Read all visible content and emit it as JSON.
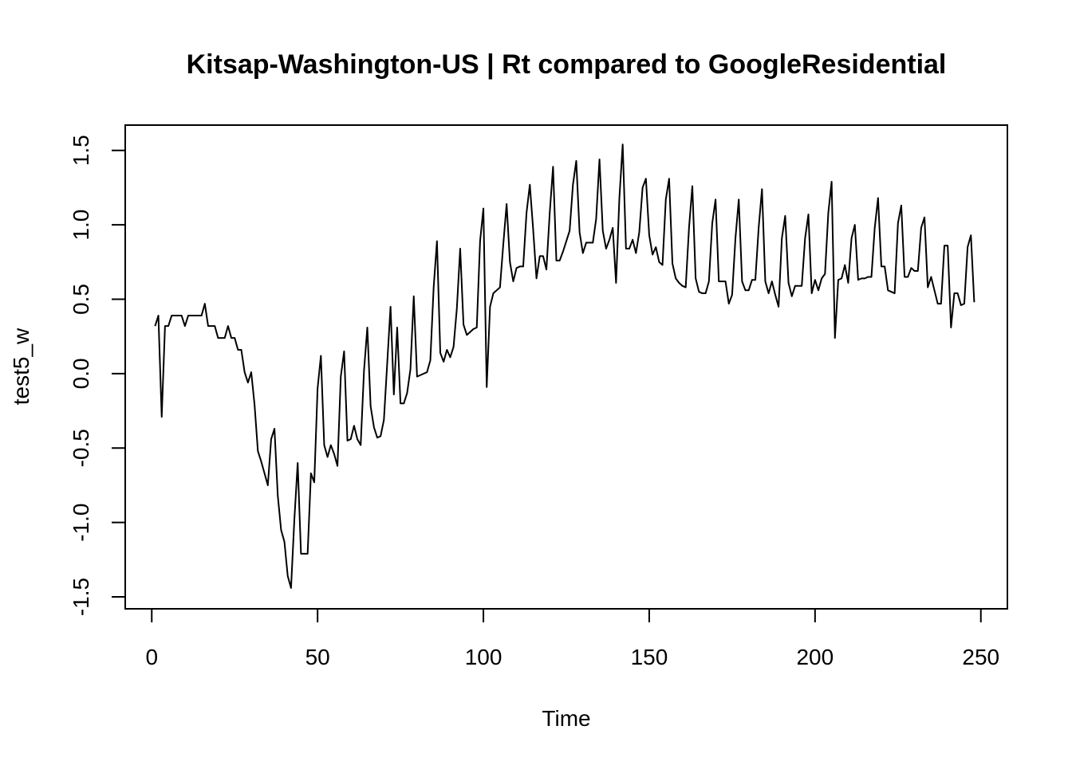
{
  "chart_data": {
    "type": "line",
    "title": "Kitsap-Washington-US | Rt compared to GoogleResidential",
    "xlabel": "Time",
    "ylabel": "test5_w",
    "xlim": [
      -8,
      258
    ],
    "ylim": [
      -1.58,
      1.67
    ],
    "x_ticks": [
      0,
      50,
      100,
      150,
      200,
      250
    ],
    "y_ticks": [
      -1.5,
      -1.0,
      -0.5,
      0.0,
      0.5,
      1.0,
      1.5
    ],
    "x_tick_labels": [
      "0",
      "50",
      "100",
      "150",
      "200",
      "250"
    ],
    "y_tick_labels": [
      "-1.5",
      "-1.0",
      "-0.5",
      "0.0",
      "0.5",
      "1.0",
      "1.5"
    ],
    "grid": false,
    "legend": "none",
    "line_color": "#000000",
    "x_start": 1,
    "values": [
      0.32,
      0.39,
      -0.29,
      0.32,
      0.32,
      0.39,
      0.39,
      0.39,
      0.39,
      0.32,
      0.39,
      0.39,
      0.39,
      0.39,
      0.39,
      0.47,
      0.32,
      0.32,
      0.32,
      0.24,
      0.24,
      0.24,
      0.32,
      0.24,
      0.24,
      0.16,
      0.16,
      0.01,
      -0.06,
      0.01,
      -0.21,
      -0.52,
      -0.59,
      -0.67,
      -0.75,
      -0.44,
      -0.37,
      -0.82,
      -1.05,
      -1.13,
      -1.36,
      -1.44,
      -0.98,
      -0.6,
      -1.21,
      -1.21,
      -1.21,
      -0.67,
      -0.73,
      -0.1,
      0.12,
      -0.48,
      -0.56,
      -0.48,
      -0.54,
      -0.62,
      -0.02,
      0.15,
      -0.45,
      -0.44,
      -0.35,
      -0.44,
      -0.48,
      0.02,
      0.31,
      -0.22,
      -0.36,
      -0.43,
      -0.42,
      -0.31,
      0.07,
      0.45,
      -0.14,
      0.31,
      -0.2,
      -0.2,
      -0.13,
      0.03,
      0.52,
      -0.02,
      -0.01,
      0.0,
      0.01,
      0.09,
      0.58,
      0.89,
      0.14,
      0.08,
      0.16,
      0.11,
      0.18,
      0.44,
      0.84,
      0.33,
      0.26,
      0.28,
      0.3,
      0.31,
      0.89,
      1.11,
      -0.09,
      0.45,
      0.54,
      0.56,
      0.58,
      0.87,
      1.14,
      0.75,
      0.62,
      0.71,
      0.72,
      0.72,
      1.08,
      1.27,
      0.97,
      0.64,
      0.79,
      0.79,
      0.7,
      1.08,
      1.39,
      0.76,
      0.76,
      0.82,
      0.89,
      0.96,
      1.27,
      1.43,
      0.95,
      0.81,
      0.88,
      0.88,
      0.88,
      1.04,
      1.44,
      0.96,
      0.84,
      0.9,
      0.98,
      0.61,
      1.18,
      1.54,
      0.84,
      0.84,
      0.9,
      0.81,
      0.95,
      1.25,
      1.31,
      0.93,
      0.8,
      0.85,
      0.75,
      0.73,
      1.17,
      1.31,
      0.74,
      0.64,
      0.61,
      0.59,
      0.58,
      0.98,
      1.26,
      0.64,
      0.55,
      0.54,
      0.54,
      0.62,
      1.01,
      1.17,
      0.62,
      0.62,
      0.62,
      0.47,
      0.53,
      0.91,
      1.17,
      0.62,
      0.56,
      0.56,
      0.63,
      0.63,
      0.98,
      1.24,
      0.62,
      0.54,
      0.62,
      0.53,
      0.45,
      0.91,
      1.06,
      0.61,
      0.52,
      0.59,
      0.59,
      0.59,
      0.91,
      1.07,
      0.54,
      0.63,
      0.56,
      0.64,
      0.67,
      1.08,
      1.29,
      0.24,
      0.63,
      0.64,
      0.73,
      0.61,
      0.91,
      1.0,
      0.63,
      0.64,
      0.64,
      0.65,
      0.65,
      0.98,
      1.18,
      0.72,
      0.72,
      0.56,
      0.55,
      0.54,
      1.01,
      1.13,
      0.65,
      0.65,
      0.71,
      0.69,
      0.69,
      0.98,
      1.05,
      0.58,
      0.65,
      0.56,
      0.47,
      0.47,
      0.86,
      0.86,
      0.31,
      0.54,
      0.54,
      0.46,
      0.47,
      0.85,
      0.93,
      0.48
    ]
  }
}
